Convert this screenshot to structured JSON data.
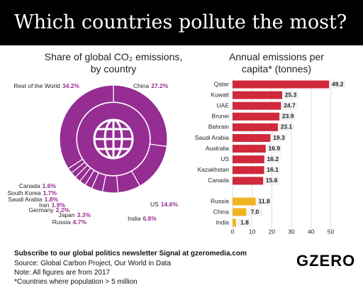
{
  "header": {
    "title": "Which countries pollute the most?"
  },
  "chart_data": [
    {
      "type": "donut",
      "title": "Share of global CO₂ emissions, by country",
      "categories": [
        "China",
        "US",
        "India",
        "Russia",
        "Japan",
        "Germany",
        "Iran",
        "Saudi Arabia",
        "South Korea",
        "Canada",
        "Rest of the World"
      ],
      "values": [
        27.2,
        14.6,
        6.8,
        4.7,
        3.3,
        2.2,
        1.9,
        1.8,
        1.7,
        1.6,
        34.2
      ],
      "value_labels": [
        "27.2%",
        "14.6%",
        "6.8%",
        "4.7%",
        "3.3%",
        "2.2%",
        "1.9%",
        "1.8%",
        "1.7%",
        "1.6%",
        "34.2%"
      ],
      "color": "#952d92"
    },
    {
      "type": "hbar",
      "title": "Annual emissions per capita* (tonnes)",
      "series": [
        {
          "color": "#d0293b",
          "categories": [
            "Qatar",
            "Kuwait",
            "UAE",
            "Brunei",
            "Bahrain",
            "Saudi Arabia",
            "Australia",
            "US",
            "Kazakhstan",
            "Canada"
          ],
          "values": [
            49.2,
            25.3,
            24.7,
            23.9,
            23.1,
            19.3,
            16.9,
            16.2,
            16.1,
            15.6
          ],
          "value_labels": [
            "49.2",
            "25.3",
            "24.7",
            "23.9",
            "23.1",
            "19.3",
            "16.9",
            "16.2",
            "16.1",
            "15.6"
          ]
        },
        {
          "color": "#f0b323",
          "categories": [
            "Russia",
            "China",
            "India"
          ],
          "values": [
            11.8,
            7.0,
            1.8
          ],
          "value_labels": [
            "11.8",
            "7.0",
            "1.8"
          ]
        }
      ],
      "xlim": [
        0,
        52
      ],
      "xticks": [
        0,
        10,
        20,
        30,
        40,
        50
      ],
      "grid": true
    }
  ],
  "footer": {
    "subscribe": "Subscribe to our global politics newsletter Signal at gzeromedia.com",
    "source": "Source: Global Carbon Project, Our World in Data",
    "note": "Note: All figures are from 2017",
    "footnote": "*Countries where population > 5 million",
    "logo": "GZERO"
  }
}
